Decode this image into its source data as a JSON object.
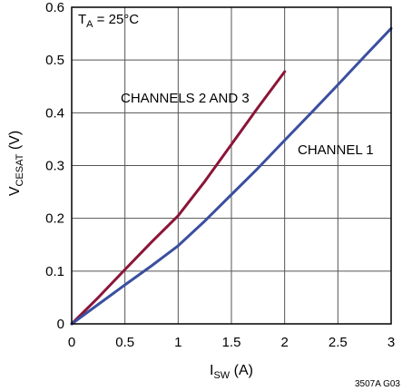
{
  "chart_data": {
    "type": "line",
    "xlabel_main": "I",
    "xlabel_sub": "SW",
    "xlabel_unit": " (A)",
    "ylabel_main": "V",
    "ylabel_sub": "CESAT",
    "ylabel_unit": " (V)",
    "xlim": [
      0,
      3
    ],
    "ylim": [
      0,
      0.6
    ],
    "xticks": [
      0,
      0.5,
      1,
      1.5,
      2,
      2.5,
      3
    ],
    "yticks": [
      0,
      0.1,
      0.2,
      0.3,
      0.4,
      0.5,
      0.6
    ],
    "xtick_labels": [
      "0",
      "0.5",
      "1",
      "1.5",
      "2",
      "2.5",
      "3"
    ],
    "ytick_labels": [
      "0",
      "0.1",
      "0.2",
      "0.3",
      "0.4",
      "0.5",
      "0.6"
    ],
    "grid": true,
    "condition_main": "T",
    "condition_sub": "A",
    "condition_rest": " = 25°C",
    "figure_id": "3507A G03",
    "series": [
      {
        "name": "CHANNELS 2 AND 3",
        "color": "#8b1538",
        "x": [
          0,
          0.25,
          0.5,
          0.75,
          1.0,
          1.25,
          1.5,
          1.75,
          2.0
        ],
        "y": [
          0,
          0.05,
          0.103,
          0.155,
          0.205,
          0.27,
          0.34,
          0.41,
          0.478
        ]
      },
      {
        "name": "CHANNEL 1",
        "color": "#3b4fa0",
        "x": [
          0,
          0.25,
          0.5,
          0.75,
          1.0,
          1.25,
          1.5,
          1.75,
          2.0,
          2.25,
          2.5,
          2.75,
          3.0
        ],
        "y": [
          0,
          0.037,
          0.074,
          0.11,
          0.148,
          0.195,
          0.245,
          0.295,
          0.348,
          0.4,
          0.453,
          0.507,
          0.56
        ]
      }
    ]
  }
}
